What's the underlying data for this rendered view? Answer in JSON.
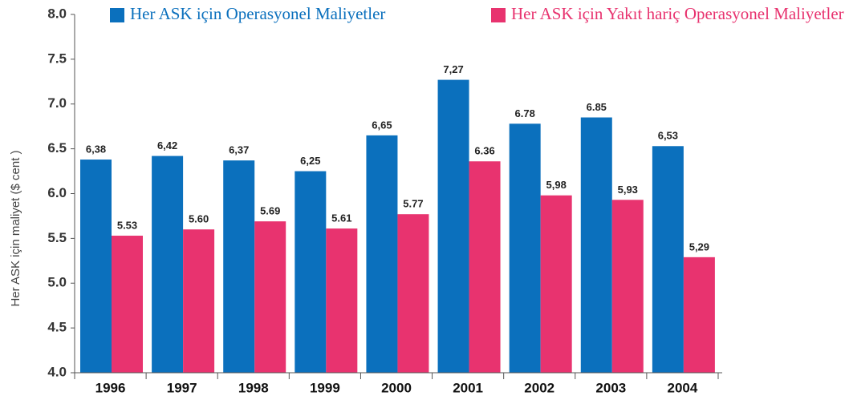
{
  "chart_data": {
    "type": "bar",
    "y_label": "Her ASK için maliyet  ($ cent )",
    "categories": [
      "1996",
      "1997",
      "1998",
      "1999",
      "2000",
      "2001",
      "2002",
      "2003",
      "2004"
    ],
    "series": [
      {
        "name": "Her ASK için Operasyonel Maliyetler",
        "color": "#0b70bd",
        "values": [
          6.38,
          6.42,
          6.37,
          6.25,
          6.65,
          7.27,
          6.78,
          6.85,
          6.53
        ],
        "value_labels": [
          "6,38",
          "6,42",
          "6,37",
          "6,25",
          "6,65",
          "7,27",
          "6.78",
          "6.85",
          "6,53"
        ]
      },
      {
        "name": "Her ASK için Yakıt hariç Operasyonel Maliyetler",
        "color": "#e8336f",
        "values": [
          5.53,
          5.6,
          5.69,
          5.61,
          5.77,
          6.36,
          5.98,
          5.93,
          5.29
        ],
        "value_labels": [
          "5.53",
          "5.60",
          "5.69",
          "5.61",
          "5.77",
          "6.36",
          "5,98",
          "5,93",
          "5,29"
        ]
      }
    ],
    "ylim": [
      4,
      8
    ],
    "yticks": [
      {
        "value": 4,
        "label": "4.0"
      },
      4.5,
      {
        "value": 5,
        "label": "5.0"
      },
      5.5,
      {
        "value": 6,
        "label": "6.0"
      },
      6.5,
      {
        "value": 7,
        "label": "7.0"
      },
      7.5,
      {
        "value": 8,
        "label": "8.0"
      }
    ]
  }
}
